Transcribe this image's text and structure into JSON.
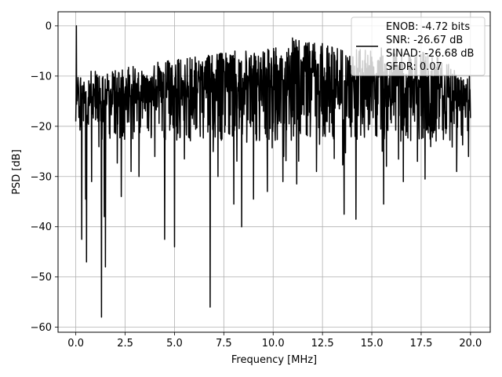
{
  "chart_data": {
    "type": "line",
    "title": "",
    "xlabel": "Frequency [MHz]",
    "ylabel": "PSD [dB]",
    "xlim": [
      -0.9,
      21.0
    ],
    "ylim": [
      -61.0,
      2.8
    ],
    "xticks": [
      0.0,
      2.5,
      5.0,
      7.5,
      10.0,
      12.5,
      15.0,
      17.5,
      20.0
    ],
    "xtick_labels": [
      "0.0",
      "2.5",
      "5.0",
      "7.5",
      "10.0",
      "12.5",
      "15.0",
      "17.5",
      "20.0"
    ],
    "yticks": [
      0,
      -10,
      -20,
      -30,
      -40,
      -50,
      -60
    ],
    "ytick_labels": [
      "0",
      "−10",
      "−20",
      "−30",
      "−40",
      "−50",
      "−60"
    ],
    "grid": true,
    "legend_position": "top-right",
    "series": [
      {
        "color": "#000000",
        "x_range": [
          0.0,
          20.0
        ],
        "upper_envelope": [
          [
            0.0,
            -8.5
          ],
          [
            0.5,
            -9.0
          ],
          [
            1.5,
            -9.0
          ],
          [
            3.0,
            -8.0
          ],
          [
            4.5,
            -7.0
          ],
          [
            6.0,
            -6.0
          ],
          [
            8.0,
            -5.0
          ],
          [
            9.5,
            -5.0
          ],
          [
            10.5,
            -3.5
          ],
          [
            11.2,
            -0.5
          ],
          [
            12.0,
            -3.0
          ],
          [
            13.0,
            -4.0
          ],
          [
            15.0,
            -4.0
          ],
          [
            17.0,
            -4.5
          ],
          [
            18.0,
            -5.0
          ],
          [
            20.0,
            -11.0
          ]
        ],
        "body_band": [
          -23.0,
          -10.0
        ],
        "dips": [
          [
            0.03,
            0.0
          ],
          [
            0.1,
            -11.5
          ],
          [
            0.2,
            -17.5
          ],
          [
            0.3,
            -42.5
          ],
          [
            0.5,
            -34.5
          ],
          [
            0.55,
            -47.0
          ],
          [
            0.8,
            -31.0
          ],
          [
            1.3,
            -58.0
          ],
          [
            1.45,
            -38.0
          ],
          [
            1.5,
            -48.0
          ],
          [
            2.3,
            -34.0
          ],
          [
            2.8,
            -29.0
          ],
          [
            3.2,
            -30.0
          ],
          [
            4.0,
            -26.0
          ],
          [
            4.5,
            -42.5
          ],
          [
            5.0,
            -44.0
          ],
          [
            5.5,
            -26.5
          ],
          [
            6.8,
            -56.0
          ],
          [
            7.2,
            -30.0
          ],
          [
            8.0,
            -35.5
          ],
          [
            8.4,
            -40.0
          ],
          [
            9.0,
            -34.5
          ],
          [
            9.7,
            -33.0
          ],
          [
            10.5,
            -31.0
          ],
          [
            11.2,
            -31.5
          ],
          [
            12.2,
            -29.0
          ],
          [
            13.6,
            -37.5
          ],
          [
            14.2,
            -38.5
          ],
          [
            15.6,
            -35.5
          ],
          [
            16.6,
            -31.0
          ],
          [
            17.7,
            -30.5
          ],
          [
            19.3,
            -29.0
          ],
          [
            19.9,
            -26.0
          ]
        ]
      }
    ],
    "legend": {
      "lines": [
        "ENOB: -4.72 bits",
        "SNR: -26.67 dB",
        "SINAD: -26.68 dB",
        "SFDR: 0.07"
      ]
    }
  }
}
